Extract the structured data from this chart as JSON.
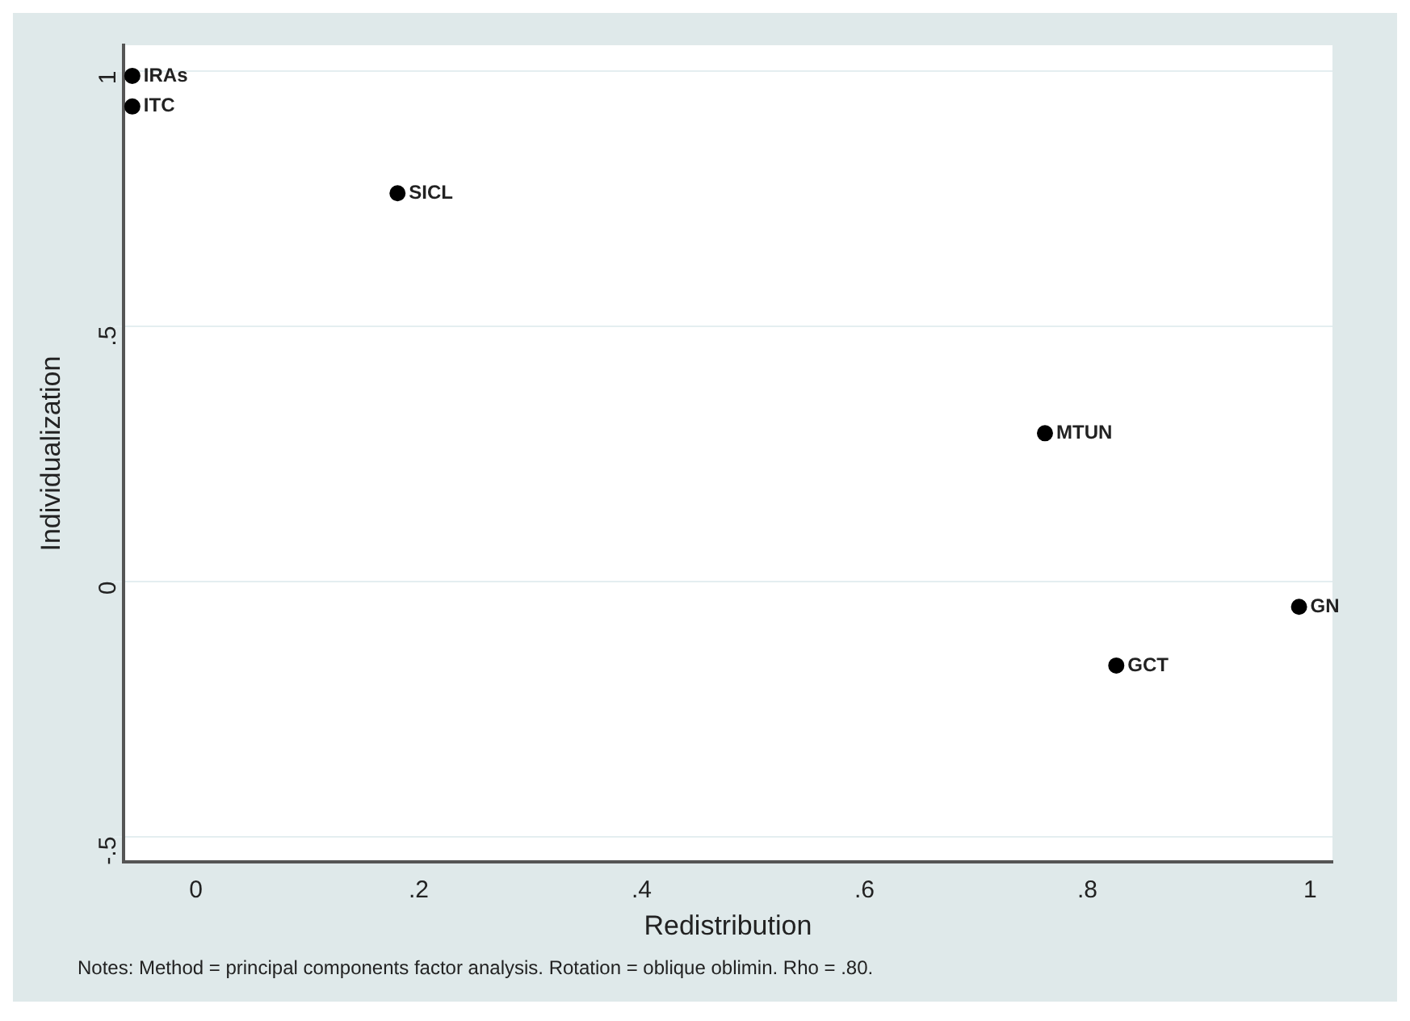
{
  "chart_data": {
    "type": "scatter",
    "xlabel": "Redistribution",
    "ylabel": "Individualization",
    "x": [
      -0.057,
      -0.057,
      0.181,
      0.762,
      0.99,
      0.826
    ],
    "values": [
      0.99,
      0.93,
      0.76,
      0.29,
      -0.05,
      -0.165
    ],
    "value_labels": [
      "IRAs",
      "ITC",
      "SICL",
      "MTUN",
      "GN",
      "GCT"
    ],
    "color": "#000000",
    "marker": "circle",
    "xlim": [
      -0.065,
      1.02
    ],
    "ylim": [
      -0.55,
      1.05
    ],
    "xticks": [
      0,
      {
        "value": 0.2,
        "label": ".2"
      },
      {
        "value": 0.4,
        "label": ".4"
      },
      {
        "value": 0.6,
        "label": ".6"
      },
      {
        "value": 0.8,
        "label": ".8"
      },
      1
    ],
    "yticks": [
      {
        "value": -0.5,
        "label": "-.5"
      },
      0,
      {
        "value": 0.5,
        "label": ".5"
      },
      1
    ],
    "grid": "y",
    "legend": false,
    "annotations": [
      "Notes: Method = principal components factor analysis. Rotation = oblique oblimin. Rho = .80."
    ]
  }
}
